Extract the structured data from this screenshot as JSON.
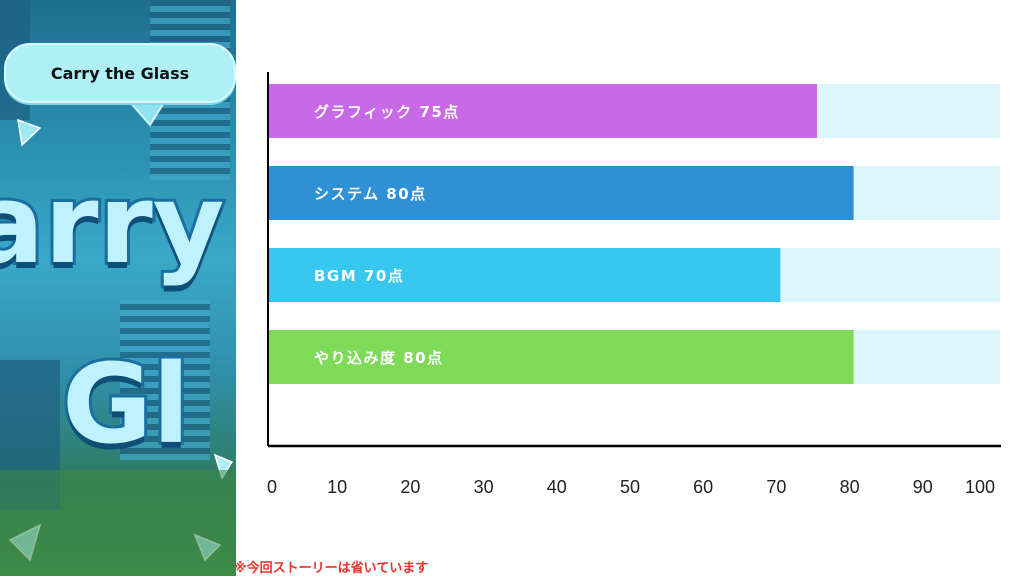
{
  "game": {
    "title": "Carry the Glass"
  },
  "note": "※今回ストーリーは省いています",
  "colors": {
    "track": "#dcf6fb",
    "axis": "#000000"
  },
  "chart_data": {
    "type": "bar",
    "orientation": "horizontal",
    "categories": [
      "グラフィック",
      "システム",
      "BGM",
      "やり込み度"
    ],
    "labels": [
      "グラフィック 75点",
      "システム 80点",
      "BGM  70点",
      "やり込み度 80点"
    ],
    "values": [
      75,
      80,
      70,
      80
    ],
    "colors": [
      "#c86ae6",
      "#2f90d6",
      "#38c8ef",
      "#7fda58"
    ],
    "xlim": [
      0,
      100
    ],
    "xticks": [
      0,
      10,
      20,
      30,
      40,
      50,
      60,
      70,
      80,
      90,
      100
    ],
    "grid": false,
    "title": "",
    "xlabel": "",
    "ylabel": ""
  }
}
